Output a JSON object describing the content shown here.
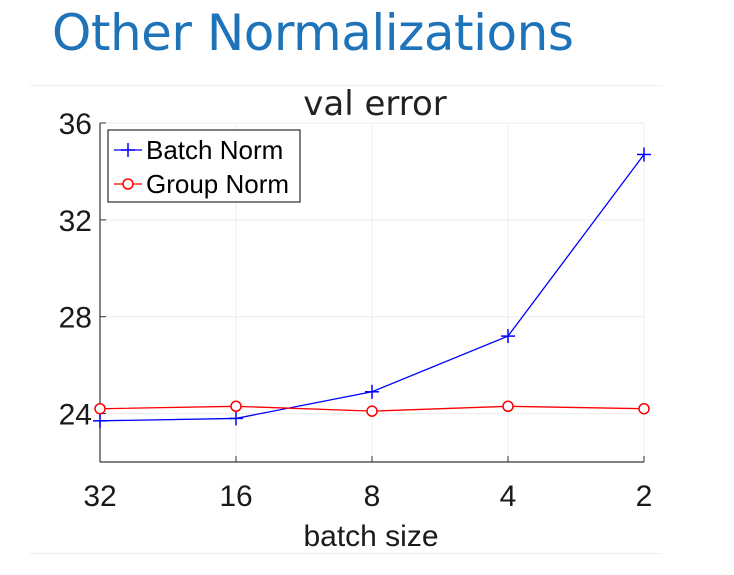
{
  "slide": {
    "title": "Other Normalizations"
  },
  "chart_data": {
    "type": "line",
    "title": "val error",
    "xlabel": "batch size",
    "ylabel": "",
    "categories": [
      "32",
      "16",
      "8",
      "4",
      "2"
    ],
    "ylim": [
      22,
      36
    ],
    "yticks": [
      24,
      28,
      32,
      36
    ],
    "grid": true,
    "legend_position": "top-left",
    "series": [
      {
        "name": "Batch Norm",
        "color": "#0000ff",
        "marker": "plus",
        "values": [
          23.7,
          23.8,
          24.9,
          27.2,
          34.7
        ]
      },
      {
        "name": "Group Norm",
        "color": "#ff0000",
        "marker": "circle",
        "values": [
          24.2,
          24.3,
          24.1,
          24.3,
          24.2
        ]
      }
    ]
  }
}
